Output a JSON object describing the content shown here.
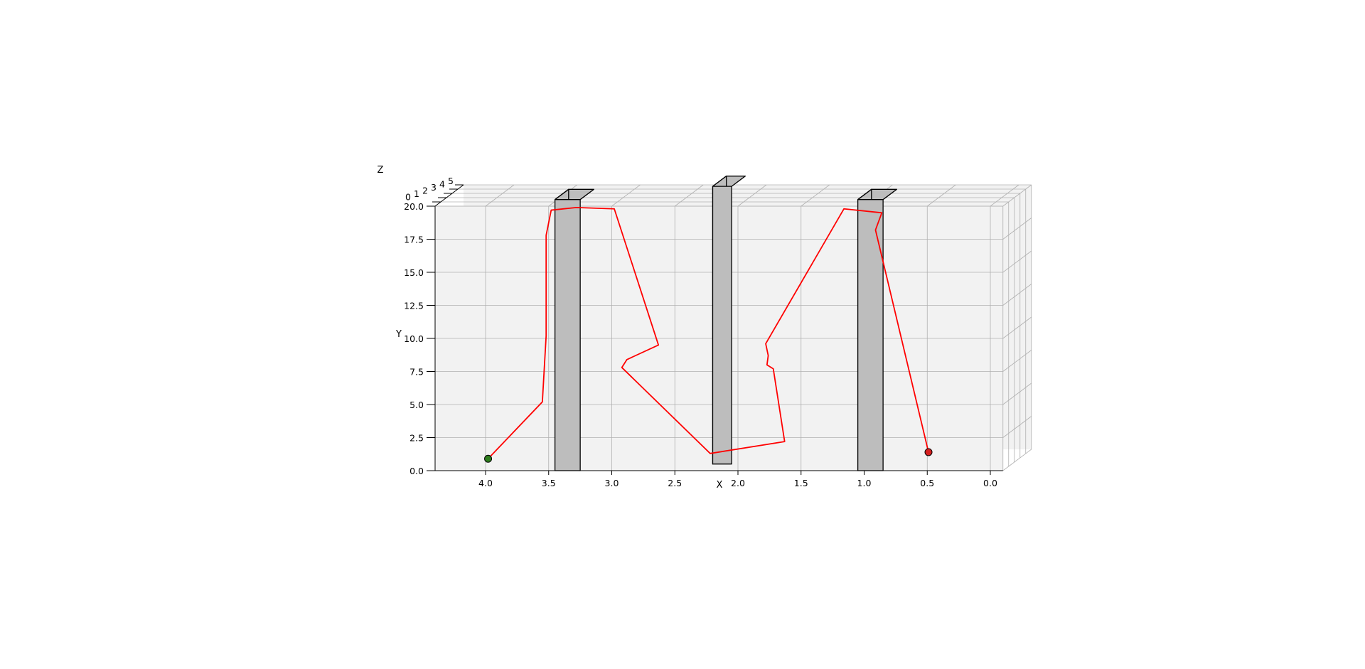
{
  "chart_data": {
    "type": "3d-line",
    "title": "",
    "xlabel": "X",
    "ylabel": "Y",
    "zlabel": "Z",
    "x_ticks": [
      "4.0",
      "3.5",
      "3.0",
      "2.5",
      "2.0",
      "1.5",
      "1.0",
      "0.5",
      "0.0"
    ],
    "y_ticks": [
      "0.0",
      "2.5",
      "5.0",
      "7.5",
      "10.0",
      "12.5",
      "15.0",
      "17.5",
      "20.0"
    ],
    "z_ticks": [
      "0",
      "1",
      "2",
      "3",
      "4",
      "5"
    ],
    "xlim": [
      4.4,
      -0.1
    ],
    "ylim": [
      0,
      20.0
    ],
    "zlim": [
      0,
      5
    ],
    "grid": true,
    "colors": {
      "path": "#ff0000",
      "start_marker": "#2e7d1e",
      "end_marker": "#d62020",
      "obstacle_fill": "#bdbdbd",
      "obstacle_edge": "#000000",
      "pane": "#f2f2f2",
      "grid": "#b0b0b0"
    },
    "series": [
      {
        "type": "line",
        "points": [
          {
            "x": 3.98,
            "y": 0.9
          },
          {
            "x": 3.55,
            "y": 5.2
          },
          {
            "x": 3.52,
            "y": 10.2
          },
          {
            "x": 3.52,
            "y": 17.8
          },
          {
            "x": 3.48,
            "y": 19.7
          },
          {
            "x": 3.28,
            "y": 19.9
          },
          {
            "x": 2.98,
            "y": 19.8
          },
          {
            "x": 2.63,
            "y": 9.5
          },
          {
            "x": 2.88,
            "y": 8.4
          },
          {
            "x": 2.92,
            "y": 7.8
          },
          {
            "x": 2.22,
            "y": 1.3
          },
          {
            "x": 1.63,
            "y": 2.2
          },
          {
            "x": 1.72,
            "y": 7.7
          },
          {
            "x": 1.77,
            "y": 8.0
          },
          {
            "x": 1.76,
            "y": 8.7
          },
          {
            "x": 1.78,
            "y": 9.6
          },
          {
            "x": 1.16,
            "y": 19.8
          },
          {
            "x": 0.86,
            "y": 19.5
          },
          {
            "x": 0.91,
            "y": 18.2
          },
          {
            "x": 0.49,
            "y": 1.4
          }
        ]
      }
    ],
    "markers": [
      {
        "role": "start",
        "x": 3.98,
        "y": 0.9
      },
      {
        "role": "end",
        "x": 0.49,
        "y": 1.4
      }
    ],
    "obstacles": [
      {
        "x_min": 3.25,
        "x_max": 3.45,
        "y_min": 0,
        "y_max": 20.5
      },
      {
        "x_min": 2.05,
        "x_max": 2.2,
        "y_min": 0.5,
        "y_max": 21.5
      },
      {
        "x_min": 0.85,
        "x_max": 1.05,
        "y_min": 0,
        "y_max": 20.5
      }
    ]
  }
}
